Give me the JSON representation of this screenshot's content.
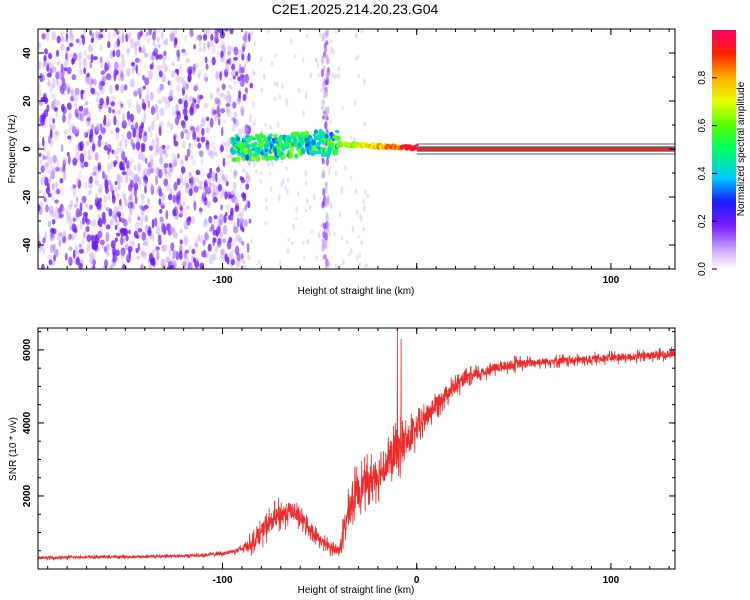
{
  "title": "C2E1.2025.214.20.23.G04",
  "chart_data": [
    {
      "type": "heatmap",
      "xlabel": "Height of straight line (km)",
      "ylabel": "Frequency (Hz)",
      "xlim": [
        -195,
        133
      ],
      "ylim": [
        -50,
        50
      ],
      "xticks": [
        -100,
        0,
        100
      ],
      "xtick_labels": [
        "-100",
        "",
        "100"
      ],
      "yticks": [
        -40,
        -20,
        0,
        20,
        40
      ],
      "ytick_labels": [
        "-40",
        "-20",
        "0",
        "20",
        "40"
      ],
      "colorbar": {
        "label": "Normalized spectral amplitude",
        "range": [
          0,
          1
        ],
        "ticks": [
          0.0,
          0.2,
          0.4,
          0.6,
          0.8
        ],
        "tick_labels": [
          "0.0",
          "0.2",
          "0.4",
          "0.6",
          "0.8"
        ]
      },
      "regions": [
        {
          "x": [
            -195,
            -85
          ],
          "content": "diffuse noise, violet"
        },
        {
          "x": [
            -95,
            -40
          ],
          "frequency": [
            -5,
            5
          ],
          "amplitude": [
            0.3,
            0.6
          ]
        },
        {
          "x": [
            -40,
            0
          ],
          "frequency": [
            0,
            3
          ],
          "amplitude": [
            0.6,
            1.0
          ]
        },
        {
          "x": [
            0,
            133
          ],
          "frequency": 0,
          "amplitude": 1.0
        }
      ]
    },
    {
      "type": "line",
      "xlabel": "Height of straight line (km)",
      "ylabel": "SNR (10 * v/v)",
      "xlim": [
        -195,
        133
      ],
      "ylim": [
        0,
        6600
      ],
      "xticks": [
        -100,
        0,
        100
      ],
      "xtick_labels": [
        "-100",
        "0",
        "100"
      ],
      "yticks": [
        2000,
        4000,
        6000
      ],
      "ytick_labels": [
        "2000",
        "4000",
        "6000"
      ],
      "series": [
        {
          "color": "#ee2b2b",
          "x": [
            -195,
            -180,
            -160,
            -140,
            -120,
            -110,
            -100,
            -95,
            -90,
            -85,
            -80,
            -75,
            -70,
            -65,
            -60,
            -55,
            -50,
            -45,
            -40,
            -38,
            -35,
            -32,
            -30,
            -25,
            -20,
            -15,
            -10,
            -8,
            -5,
            0,
            5,
            10,
            15,
            20,
            25,
            30,
            35,
            40,
            50,
            60,
            70,
            80,
            90,
            100,
            110,
            120,
            133
          ],
          "values": [
            300,
            320,
            330,
            340,
            360,
            380,
            420,
            480,
            550,
            700,
            1000,
            1300,
            1500,
            1600,
            1400,
            1100,
            800,
            600,
            500,
            900,
            1600,
            2000,
            2200,
            2400,
            2600,
            2900,
            3200,
            3400,
            3500,
            3800,
            4200,
            4500,
            4800,
            5000,
            5200,
            5300,
            5400,
            5500,
            5600,
            5650,
            5700,
            5700,
            5750,
            5800,
            5800,
            5850,
            5900
          ],
          "noise": [
            60,
            60,
            60,
            60,
            60,
            70,
            80,
            100,
            150,
            350,
            450,
            500,
            500,
            450,
            400,
            300,
            250,
            250,
            200,
            500,
            700,
            800,
            800,
            800,
            800,
            800,
            900,
            900,
            800,
            600,
            500,
            450,
            400,
            350,
            300,
            300,
            250,
            250,
            250,
            200,
            200,
            200,
            200,
            200,
            200,
            200,
            200
          ],
          "spikes": [
            {
              "x": -10,
              "y": 6600
            },
            {
              "x": -8,
              "y": 6300
            }
          ]
        }
      ]
    }
  ]
}
